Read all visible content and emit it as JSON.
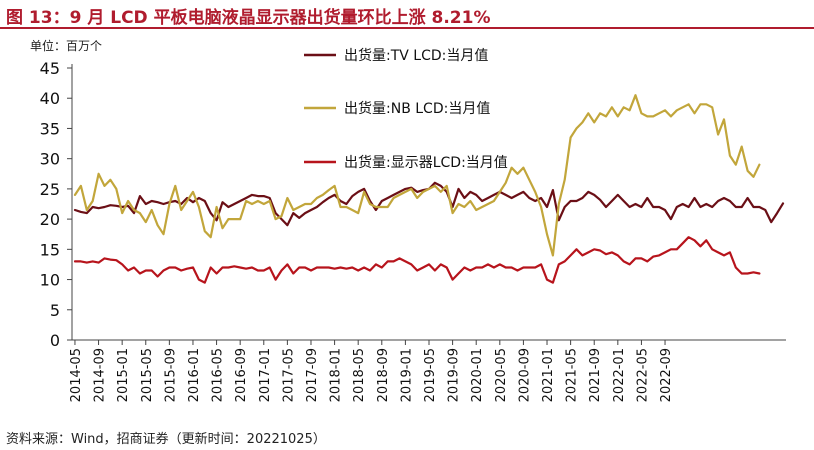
{
  "header": {
    "title": "图 13：9 月 LCD 平板电脑液晶显示器出货量环比上涨 8.21%",
    "unit": "单位：百万个"
  },
  "footer": {
    "source": "资料来源：Wind，招商证券（更新时间：20221025）"
  },
  "colors": {
    "title": "#b01c2e",
    "axis": "#444444",
    "tv": "#6b0f16",
    "nb": "#c2a63b",
    "monitor": "#b7141c"
  },
  "chart_data": {
    "type": "line",
    "title": "9 月 LCD 平板电脑液晶显示器出货量环比上涨 8.21%",
    "ylabel": "单位：百万个",
    "xlabel": "",
    "ylim": [
      0,
      45
    ],
    "yticks": [
      0,
      5,
      10,
      15,
      20,
      25,
      30,
      35,
      40,
      45
    ],
    "xtick_labels": [
      "2014-05",
      "2014-09",
      "2015-01",
      "2015-05",
      "2015-09",
      "2016-01",
      "2016-05",
      "2016-09",
      "2017-01",
      "2017-05",
      "2017-09",
      "2018-01",
      "2018-05",
      "2018-09",
      "2019-01",
      "2019-05",
      "2019-09",
      "2020-01",
      "2020-05",
      "2020-09",
      "2021-01",
      "2021-05",
      "2021-09",
      "2022-01",
      "2022-05",
      "2022-09"
    ],
    "x_start": "2014-05",
    "grid": false,
    "legend_position": "top-center",
    "series": [
      {
        "name": "出货量:TV LCD:当月值",
        "color_key": "tv",
        "values": [
          21.5,
          21.2,
          21.0,
          22.0,
          21.8,
          22.0,
          22.3,
          22.2,
          22.0,
          22.2,
          21.0,
          23.8,
          22.5,
          23.0,
          22.8,
          22.5,
          22.8,
          23.0,
          22.5,
          23.5,
          22.8,
          23.5,
          23.0,
          21.0,
          19.8,
          22.8,
          22.0,
          22.5,
          23.0,
          23.5,
          24.0,
          23.8,
          23.8,
          23.5,
          21.0,
          20.0,
          19.0,
          21.0,
          20.2,
          21.0,
          21.5,
          22.0,
          22.8,
          23.5,
          24.0,
          23.0,
          22.5,
          23.8,
          24.5,
          25.0,
          23.0,
          21.5,
          23.0,
          23.5,
          24.0,
          24.5,
          25.0,
          25.2,
          24.5,
          24.8,
          25.0,
          26.0,
          25.5,
          24.5,
          22.0,
          25.0,
          23.5,
          24.5,
          24.0,
          23.0,
          23.5,
          24.0,
          24.5,
          24.0,
          23.5,
          24.0,
          24.5,
          23.5,
          23.0,
          23.5,
          22.0,
          24.8,
          19.8,
          22.0,
          23.0,
          23.0,
          23.5,
          24.5,
          24.0,
          23.2,
          22.0,
          23.0,
          24.0,
          23.0,
          22.0,
          22.5,
          22.0,
          23.5,
          22.0,
          22.0,
          21.5,
          20.0,
          22.0,
          22.5,
          22.0,
          23.5,
          22.0,
          22.5,
          22.0,
          23.0,
          23.5,
          23.0,
          22.0,
          22.0,
          23.5,
          22.0,
          22.0,
          21.5,
          19.5,
          21.0,
          22.6
        ]
      },
      {
        "name": "出货量:NB LCD:当月值",
        "color_key": "nb",
        "values": [
          24.0,
          25.5,
          21.5,
          23.0,
          27.5,
          25.5,
          26.5,
          25.0,
          21.0,
          23.0,
          21.5,
          21.0,
          19.5,
          21.5,
          19.0,
          17.5,
          22.5,
          25.5,
          21.5,
          23.0,
          24.5,
          22.0,
          18.0,
          17.0,
          22.0,
          18.5,
          20.0,
          20.0,
          20.0,
          23.0,
          22.5,
          23.0,
          22.5,
          23.0,
          20.0,
          20.5,
          23.5,
          21.5,
          22.0,
          22.5,
          22.5,
          23.5,
          24.0,
          24.8,
          25.5,
          22.0,
          22.0,
          21.5,
          21.0,
          24.5,
          22.5,
          22.0,
          22.0,
          22.0,
          23.5,
          24.0,
          24.5,
          25.0,
          23.5,
          24.5,
          25.0,
          25.5,
          24.5,
          25.5,
          21.0,
          22.5,
          22.0,
          23.0,
          21.5,
          22.0,
          22.5,
          23.0,
          24.5,
          26.0,
          28.5,
          27.5,
          28.5,
          26.5,
          24.5,
          22.0,
          17.5,
          14.0,
          22.5,
          26.5,
          33.5,
          35.0,
          36.0,
          37.5,
          36.0,
          37.5,
          37.0,
          38.5,
          37.0,
          38.5,
          38.0,
          40.5,
          37.5,
          37.0,
          37.0,
          37.5,
          38.0,
          37.0,
          38.0,
          38.5,
          39.0,
          37.5,
          39.0,
          39.0,
          38.5,
          34.0,
          36.5,
          30.5,
          29.0,
          32.0,
          28.0,
          27.0,
          29.0
        ]
      },
      {
        "name": "出货量:显示器LCD:当月值",
        "color_key": "monitor",
        "values": [
          13.0,
          13.0,
          12.8,
          13.0,
          12.8,
          13.5,
          13.3,
          13.2,
          12.5,
          11.5,
          12.0,
          11.0,
          11.5,
          11.5,
          10.5,
          11.5,
          12.0,
          12.0,
          11.5,
          11.8,
          12.0,
          10.0,
          9.5,
          12.0,
          11.0,
          12.0,
          12.0,
          12.2,
          12.0,
          11.8,
          12.0,
          11.5,
          11.5,
          12.0,
          10.0,
          11.5,
          12.5,
          11.0,
          12.0,
          12.0,
          11.5,
          12.0,
          12.0,
          12.0,
          11.8,
          12.0,
          11.8,
          12.0,
          11.5,
          12.0,
          11.5,
          12.5,
          12.0,
          13.0,
          13.0,
          13.5,
          13.0,
          12.5,
          11.5,
          12.0,
          12.5,
          11.5,
          12.5,
          12.0,
          10.0,
          11.0,
          12.0,
          11.5,
          12.0,
          12.0,
          12.5,
          12.0,
          12.5,
          12.0,
          12.0,
          11.5,
          12.0,
          12.0,
          12.0,
          12.5,
          10.0,
          9.5,
          12.5,
          13.0,
          14.0,
          15.0,
          14.0,
          14.5,
          15.0,
          14.8,
          14.2,
          14.5,
          14.0,
          13.0,
          12.5,
          13.5,
          13.5,
          13.0,
          13.8,
          14.0,
          14.5,
          15.0,
          15.0,
          16.0,
          17.0,
          16.5,
          15.5,
          16.5,
          15.0,
          14.5,
          14.0,
          14.5,
          12.0,
          11.0,
          11.0,
          11.2,
          11.0
        ]
      }
    ]
  }
}
